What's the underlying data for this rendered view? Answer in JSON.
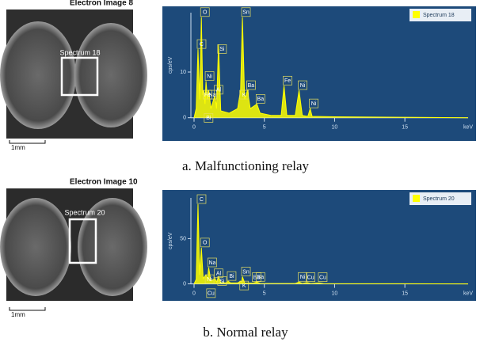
{
  "figures": [
    {
      "image_title": "Electron Image 8",
      "region_label": "Spectrum 18",
      "scale_bar": "1mm",
      "caption": "a. Malfunctioning relay"
    },
    {
      "image_title": "Electron Image 10",
      "region_label": "Spectrum 20",
      "scale_bar": "1mm",
      "caption": "b. Normal relay"
    }
  ],
  "chart_data": [
    {
      "type": "line",
      "x_label": "keV",
      "y_label": "cps/eV",
      "x": [
        0,
        0.15,
        0.28,
        0.4,
        0.52,
        0.62,
        0.7,
        0.78,
        0.85,
        0.95,
        1.04,
        1.2,
        1.49,
        1.6,
        1.74,
        1.9,
        2.5,
        3.1,
        3.31,
        3.44,
        3.6,
        3.8,
        4.0,
        4.47,
        4.7,
        5.5,
        6.2,
        6.4,
        6.6,
        7.2,
        7.47,
        7.7,
        8.1,
        8.26,
        8.4,
        10,
        15,
        19.5
      ],
      "series": [
        {
          "name": "Spectrum 18",
          "color": "#ffff00",
          "values": [
            0,
            2,
            15,
            4,
            22,
            5,
            6,
            3,
            8,
            4,
            6,
            2,
            5,
            2,
            16,
            1.5,
            1,
            2,
            6,
            22,
            4,
            6,
            2,
            3,
            1,
            0.5,
            0.5,
            7,
            0.5,
            0.5,
            6,
            0.5,
            0.3,
            2,
            0.3,
            0.2,
            0.1,
            0
          ]
        }
      ],
      "xlim": [
        0,
        19.5
      ],
      "ylim": [
        -3,
        23
      ],
      "xticks": [
        0,
        5,
        10,
        15
      ],
      "yticks": [
        0,
        10
      ],
      "annotations": [
        {
          "text": "C",
          "x": 0.28
        },
        {
          "text": "O",
          "x": 0.52
        },
        {
          "text": "Ni",
          "x": 0.85
        },
        {
          "text": "Na",
          "x": 1.04
        },
        {
          "text": "Fe",
          "x": 0.7
        },
        {
          "text": "Bi",
          "x": 0.78
        },
        {
          "text": "Al",
          "x": 1.49
        },
        {
          "text": "Si",
          "x": 1.74
        },
        {
          "text": "Sn",
          "x": 3.44
        },
        {
          "text": "K",
          "x": 3.31
        },
        {
          "text": "Ba",
          "x": 3.8
        },
        {
          "text": "Ba",
          "x": 4.47
        },
        {
          "text": "Fe",
          "x": 6.4
        },
        {
          "text": "Ni",
          "x": 7.47
        },
        {
          "text": "Ni",
          "x": 8.26
        }
      ]
    },
    {
      "type": "line",
      "x_label": "keV",
      "y_label": "cps/eV",
      "x": [
        0,
        0.15,
        0.28,
        0.4,
        0.52,
        0.65,
        0.85,
        0.95,
        1.04,
        1.2,
        1.49,
        1.6,
        1.74,
        1.9,
        2.3,
        2.42,
        2.6,
        3.1,
        3.31,
        3.38,
        3.44,
        3.6,
        4.2,
        4.47,
        4.7,
        7.2,
        7.47,
        7.7,
        8.04,
        8.3,
        8.9,
        9.2,
        12,
        19.5
      ],
      "series": [
        {
          "name": "Spectrum 20",
          "color": "#ffff00",
          "values": [
            0,
            5,
            88,
            10,
            40,
            6,
            10,
            5,
            18,
            3,
            6,
            2,
            8,
            1.5,
            1,
            3,
            1,
            1,
            3,
            2,
            8,
            1,
            0.8,
            2,
            0.5,
            0.4,
            2,
            0.4,
            1.5,
            0.4,
            1,
            0.3,
            0.2,
            0
          ]
        }
      ],
      "xlim": [
        0,
        19.5
      ],
      "ylim": [
        -10,
        95
      ],
      "xticks": [
        0,
        5,
        10,
        15
      ],
      "yticks": [
        0,
        50
      ],
      "annotations": [
        {
          "text": "C",
          "x": 0.28
        },
        {
          "text": "O",
          "x": 0.52
        },
        {
          "text": "Na",
          "x": 1.04
        },
        {
          "text": "Ni",
          "x": 0.85
        },
        {
          "text": "Bi",
          "x": 2.42
        },
        {
          "text": "Al",
          "x": 1.49
        },
        {
          "text": "Si",
          "x": 1.74
        },
        {
          "text": "Cu",
          "x": 0.95
        },
        {
          "text": "Sn",
          "x": 3.44
        },
        {
          "text": "K",
          "x": 3.31
        },
        {
          "text": "Ba",
          "x": 4.2
        },
        {
          "text": "Ba",
          "x": 4.47
        },
        {
          "text": "Ni",
          "x": 7.47
        },
        {
          "text": "Cu",
          "x": 8.04
        },
        {
          "text": "Cu",
          "x": 8.9
        }
      ]
    }
  ]
}
